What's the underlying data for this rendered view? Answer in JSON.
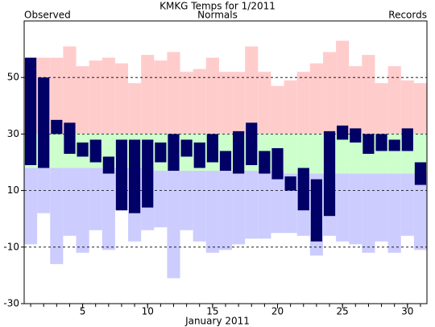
{
  "chart_data": {
    "type": "range-bar",
    "title": "KMKG Temps for 1/2011",
    "x_label": "January 2011",
    "x": [
      1,
      2,
      3,
      4,
      5,
      6,
      7,
      8,
      9,
      10,
      11,
      12,
      13,
      14,
      15,
      16,
      17,
      18,
      19,
      20,
      21,
      22,
      23,
      24,
      25,
      26,
      27,
      28,
      29,
      30,
      31
    ],
    "xlim": [
      0.5,
      31.5
    ],
    "xticks": [
      5,
      10,
      15,
      20,
      25,
      30
    ],
    "ylim": [
      -30,
      70
    ],
    "yticks": [
      -30,
      -10,
      10,
      30,
      50
    ],
    "grid": true,
    "series": [
      {
        "name": "Observed",
        "color": "#000066",
        "high": [
          57,
          50,
          35,
          34,
          27,
          28,
          22,
          28,
          28,
          28,
          27,
          30,
          28,
          27,
          30,
          24,
          31,
          34,
          24,
          25,
          15,
          18,
          14,
          31,
          33,
          32,
          30,
          30,
          28,
          32,
          20
        ],
        "low": [
          19,
          18,
          30,
          23,
          22,
          20,
          16,
          3,
          2,
          4,
          20,
          17,
          22,
          18,
          20,
          17,
          16,
          19,
          16,
          14,
          10,
          3,
          -8,
          1,
          28,
          27,
          23,
          24,
          24,
          24,
          12
        ]
      },
      {
        "name": "Normals",
        "color": "#008000",
        "fill": "#ccffcc",
        "high": [
          30,
          30,
          30,
          30,
          30,
          30,
          30,
          30,
          30,
          30,
          30,
          30,
          30,
          30,
          30,
          30,
          30,
          30,
          30,
          30,
          30,
          30,
          30,
          30,
          30,
          30,
          30,
          30,
          30,
          30,
          30
        ],
        "low": [
          18,
          18,
          18,
          18,
          18,
          18,
          18,
          18,
          18,
          18,
          17,
          17,
          17,
          17,
          17,
          17,
          17,
          17,
          17,
          17,
          16,
          16,
          16,
          16,
          16,
          16,
          16,
          16,
          16,
          16,
          16
        ]
      },
      {
        "name": "Records",
        "color": "#cc88dd",
        "high_fill": "#ffcccc",
        "low_fill": "#ccccff",
        "high": [
          57,
          57,
          57,
          61,
          54,
          56,
          57,
          55,
          48,
          58,
          56,
          59,
          52,
          53,
          57,
          52,
          52,
          61,
          52,
          47,
          49,
          52,
          55,
          59,
          63,
          54,
          58,
          48,
          54,
          49,
          48
        ],
        "low": [
          -9,
          2,
          -16,
          -6,
          -12,
          -4,
          -11,
          3,
          -8,
          -4,
          -3,
          -21,
          -4,
          -8,
          -12,
          -11,
          -9,
          -7,
          -7,
          -5,
          -5,
          -6,
          -13,
          -6,
          -8,
          -9,
          -12,
          -8,
          -12,
          -6,
          -11
        ]
      }
    ]
  }
}
